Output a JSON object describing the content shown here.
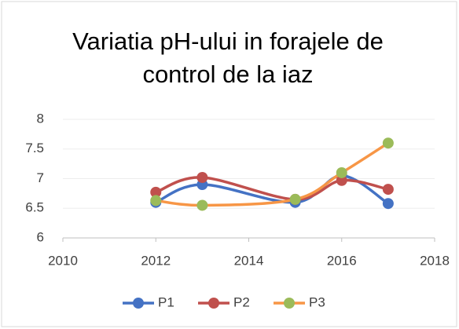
{
  "chart_data": {
    "type": "line",
    "smooth": true,
    "title": "Variatia pH-ului in forajele de control de la iaz",
    "x": [
      2012,
      2013,
      2015,
      2016,
      2017
    ],
    "series": [
      {
        "name": "P1",
        "color": "#4472c4",
        "marker_color": "#4472c4",
        "values": [
          6.6,
          6.9,
          6.6,
          7.05,
          6.58
        ]
      },
      {
        "name": "P2",
        "color": "#c0504d",
        "marker_color": "#c0504d",
        "values": [
          6.77,
          7.02,
          6.65,
          6.97,
          6.82
        ]
      },
      {
        "name": "P3",
        "color": "#f79646",
        "marker_color": "#9bbb59",
        "values": [
          6.63,
          6.55,
          6.65,
          7.1,
          7.6
        ]
      }
    ],
    "xlim": [
      2010,
      2018
    ],
    "xticks": [
      2010,
      2012,
      2014,
      2016,
      2018
    ],
    "ylim": [
      6,
      8
    ],
    "yticks": [
      6,
      6.5,
      7,
      7.5,
      8
    ],
    "grid": true,
    "legend": "bottom"
  }
}
